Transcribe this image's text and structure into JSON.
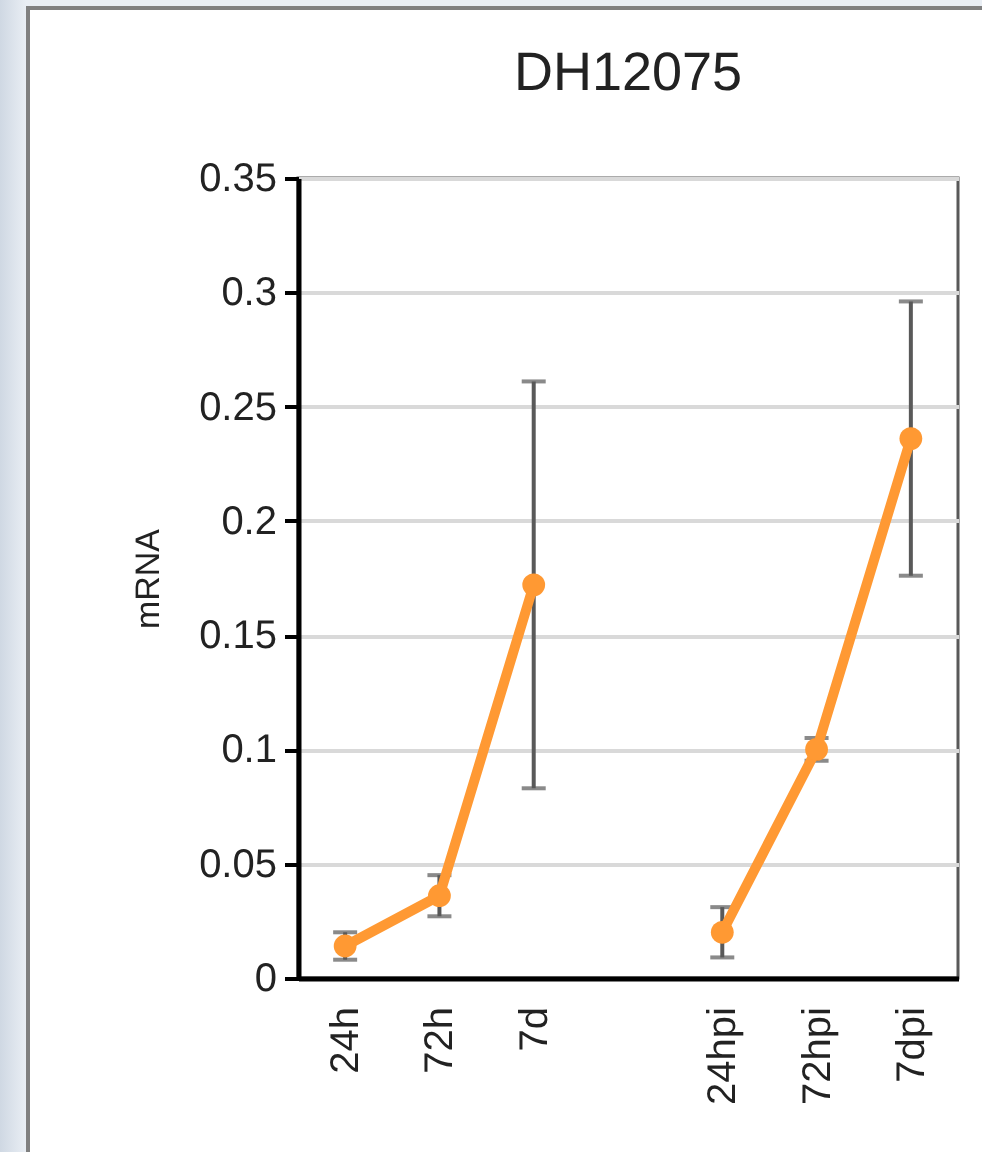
{
  "chart_data": {
    "type": "line",
    "title": "DH12075",
    "ylabel": "mRNA",
    "categories": [
      "24h",
      "72h",
      "7d",
      null,
      "24hpi",
      "72hpi",
      "7dpi"
    ],
    "series": [
      {
        "color": "#ff9933",
        "values": [
          0.014,
          0.036,
          0.172,
          null,
          0.02,
          0.1,
          0.236
        ],
        "errors": [
          0.006,
          0.009,
          0.089,
          null,
          0.011,
          0.005,
          0.06
        ]
      }
    ],
    "ylim": [
      0,
      0.35
    ],
    "yticks": [
      0,
      0.05,
      0.1,
      0.15,
      0.2,
      0.25,
      0.3,
      0.35
    ],
    "grid": "y",
    "marker": "circle",
    "line_style": "solid"
  }
}
